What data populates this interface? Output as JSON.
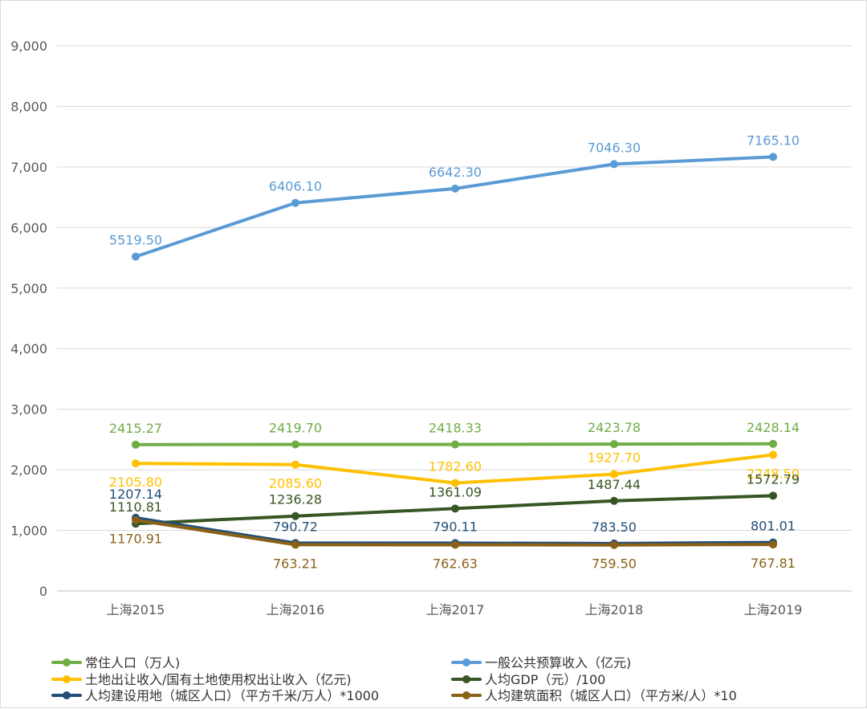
{
  "chart_data": {
    "type": "line",
    "categories": [
      "上海2015",
      "上海2016",
      "上海2017",
      "上海2018",
      "上海2019"
    ],
    "ylim": [
      0,
      9000
    ],
    "yticks": [
      0,
      1000,
      2000,
      3000,
      4000,
      5000,
      6000,
      7000,
      8000,
      9000
    ],
    "ytick_labels": [
      "0",
      "1,000",
      "2,000",
      "3,000",
      "4,000",
      "5,000",
      "6,000",
      "7,000",
      "8,000",
      "9,000"
    ],
    "grid": true,
    "legend_position": "bottom",
    "series": [
      {
        "name": "常住人口（万人)",
        "color": "#70ad47",
        "values": [
          2415.27,
          2419.7,
          2418.33,
          2423.78,
          2428.14
        ],
        "labels": [
          "2415.27",
          "2419.70",
          "2418.33",
          "2423.78",
          "2428.14"
        ],
        "label_pos": [
          "above",
          "above",
          "above",
          "above",
          "above"
        ]
      },
      {
        "name": "一般公共预算收入（亿元)",
        "color": "#5b9bd5",
        "values": [
          5519.5,
          6406.1,
          6642.3,
          7046.3,
          7165.1
        ],
        "labels": [
          "5519.50",
          "6406.10",
          "6642.30",
          "7046.30",
          "7165.10"
        ],
        "label_pos": [
          "above",
          "above",
          "above",
          "above",
          "above"
        ]
      },
      {
        "name": "土地出让收入/国有土地使用权出让收入（亿元)",
        "color": "#ffc000",
        "values": [
          2105.8,
          2085.6,
          1782.6,
          1927.7,
          2248.5
        ],
        "labels": [
          "2105.80",
          "2085.60",
          "1782.60",
          "1927.70",
          "2248.50"
        ],
        "label_pos": [
          "below",
          "below",
          "above",
          "above",
          "below"
        ]
      },
      {
        "name": "人均GDP（元）/100",
        "color": "#375623",
        "values": [
          1110.81,
          1236.28,
          1361.09,
          1487.44,
          1572.79
        ],
        "labels": [
          "1110.81",
          "1236.28",
          "1361.09",
          "1487.44",
          "1572.79"
        ],
        "label_pos": [
          "above",
          "above",
          "above",
          "above",
          "above"
        ]
      },
      {
        "name": "人均建设用地（城区人口）（平方千米/万人）*1000",
        "color": "#1f4e79",
        "values": [
          1207.14,
          790.72,
          790.11,
          783.5,
          801.01
        ],
        "labels": [
          "1207.14",
          "790.72",
          "790.11",
          "783.50",
          "801.01"
        ],
        "label_pos": [
          "above2",
          "above",
          "above",
          "above",
          "above"
        ]
      },
      {
        "name": "人均建筑面积（城区人口）（平方米/人）*10",
        "color": "#8a6116",
        "values": [
          1170.91,
          763.21,
          762.63,
          759.5,
          767.81
        ],
        "labels": [
          "1170.91",
          "763.21",
          "762.63",
          "759.50",
          "767.81"
        ],
        "label_pos": [
          "below",
          "below",
          "below",
          "below",
          "below"
        ]
      }
    ]
  }
}
